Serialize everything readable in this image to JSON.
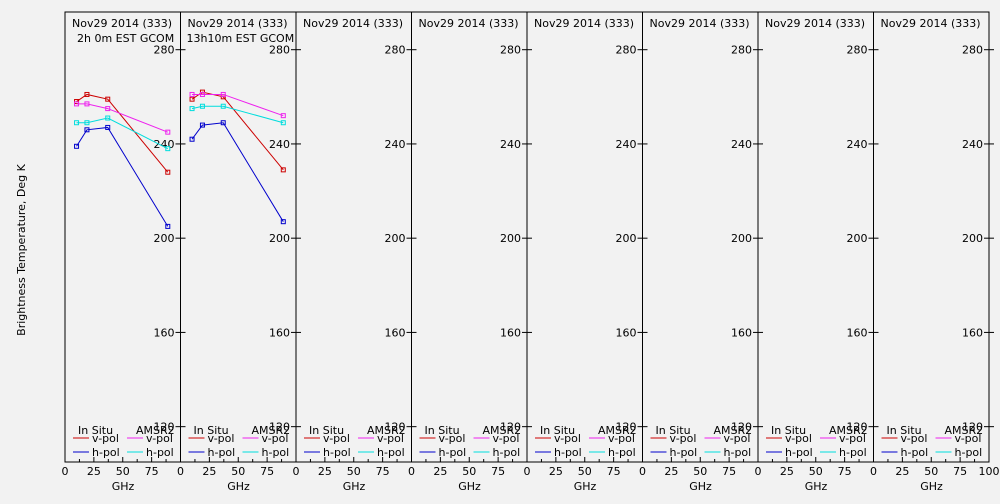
{
  "chart_data": {
    "type": "line",
    "ylabel": "Brightness Temperature, Deg K",
    "xlabel": "GHz",
    "xlim": [
      0,
      100
    ],
    "ylim": [
      105,
      296
    ],
    "xticks": [
      0,
      25,
      50,
      75,
      100
    ],
    "yticks": [
      120,
      160,
      200,
      240,
      280
    ],
    "legend": {
      "insitu_header": "In Situ",
      "amsr2_header": "AMSR2",
      "vpol": "v-pol",
      "hpol": "h-pol"
    },
    "colors": {
      "insitu_v": "#cc0000",
      "insitu_h": "#0000cc",
      "amsr2_v": "#ee22ee",
      "amsr2_h": "#00dddd"
    },
    "panels": [
      {
        "title": "Nov29 2014 (333)",
        "subtitle": "2h 0m EST GCOM",
        "series": [
          {
            "name": "In Situ v-pol",
            "x": [
              10,
              19,
              37,
              89
            ],
            "y": [
              258,
              261,
              259,
              228
            ]
          },
          {
            "name": "In Situ h-pol",
            "x": [
              10,
              19,
              37,
              89
            ],
            "y": [
              239,
              246,
              247,
              205
            ]
          },
          {
            "name": "AMSR2 v-pol",
            "x": [
              10,
              19,
              37,
              89
            ],
            "y": [
              257,
              257,
              255,
              245
            ]
          },
          {
            "name": "AMSR2 h-pol",
            "x": [
              10,
              19,
              37,
              89
            ],
            "y": [
              249,
              249,
              251,
              238
            ]
          }
        ]
      },
      {
        "title": "Nov29 2014 (333)",
        "subtitle": "13h10m EST GCOM",
        "series": [
          {
            "name": "In Situ v-pol",
            "x": [
              10,
              19,
              37,
              89
            ],
            "y": [
              259,
              262,
              260,
              229
            ]
          },
          {
            "name": "In Situ h-pol",
            "x": [
              10,
              19,
              37,
              89
            ],
            "y": [
              242,
              248,
              249,
              207
            ]
          },
          {
            "name": "AMSR2 v-pol",
            "x": [
              10,
              19,
              37,
              89
            ],
            "y": [
              261,
              261,
              261,
              252
            ]
          },
          {
            "name": "AMSR2 h-pol",
            "x": [
              10,
              19,
              37,
              89
            ],
            "y": [
              255,
              256,
              256,
              249
            ]
          }
        ]
      },
      {
        "title": "Nov29 2014 (333)",
        "subtitle": "",
        "series": []
      },
      {
        "title": "Nov29 2014 (333)",
        "subtitle": "",
        "series": []
      },
      {
        "title": "Nov29 2014 (333)",
        "subtitle": "",
        "series": []
      },
      {
        "title": "Nov29 2014 (333)",
        "subtitle": "",
        "series": []
      },
      {
        "title": "Nov29 2014 (333)",
        "subtitle": "",
        "series": []
      },
      {
        "title": "Nov29 2014 (333)",
        "subtitle": "",
        "series": []
      }
    ]
  }
}
